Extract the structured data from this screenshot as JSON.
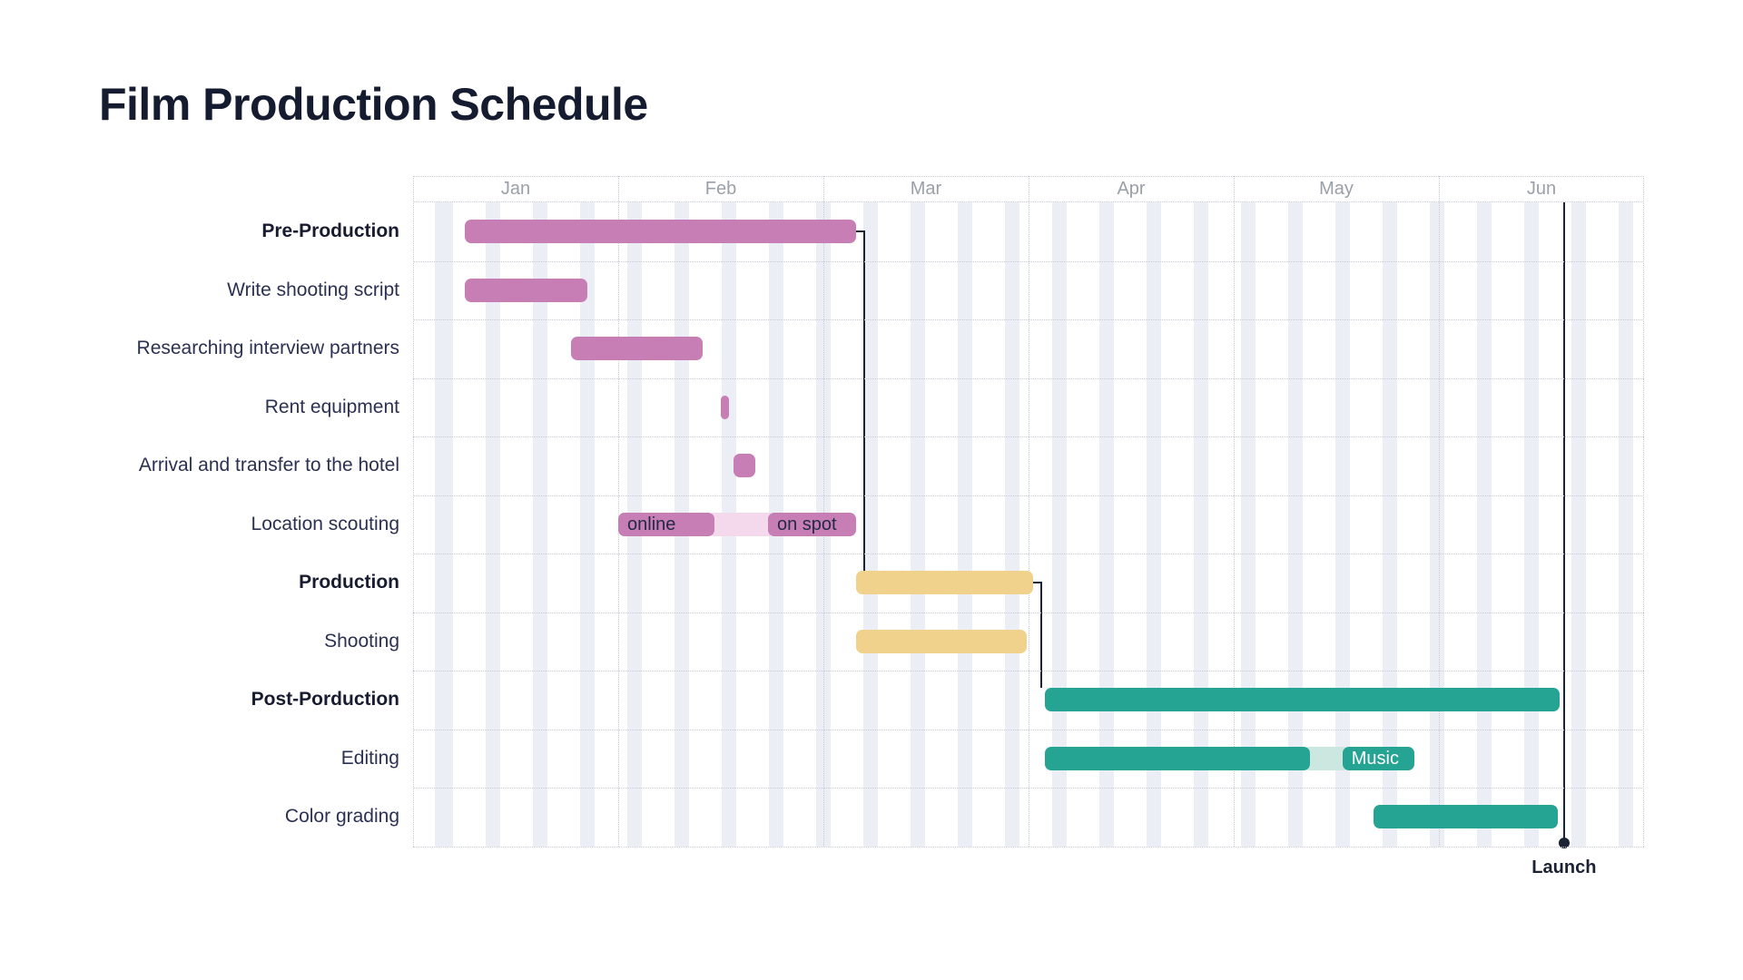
{
  "title": "Film Production Schedule",
  "colors": {
    "pink": "#c77eb5",
    "pink_light": "#f4d9ec",
    "yellow": "#f0d28c",
    "yellow_light": "#faf0d8",
    "teal": "#26a493",
    "teal_light": "#cbe7e0",
    "bar_label_dark": "#232947",
    "bar_label_light": "#ffffff",
    "line": "#1b2233",
    "stripe": "#ebeff5",
    "grid": "#c5cad3",
    "month_label": "#9aa0a8",
    "row_label": "#2b3152",
    "row_label_bold": "#171c30",
    "title_color": "#161c30"
  },
  "chart_data": {
    "type": "gantt",
    "title": "Film Production Schedule",
    "x_axis": {
      "unit": "month",
      "tick_labels": [
        "Jan",
        "Feb",
        "Mar",
        "Apr",
        "May",
        "Jun"
      ],
      "range_months": [
        0,
        6
      ]
    },
    "grid": {
      "weekend_stripes": true,
      "month_gridlines": "dotted",
      "row_gridlines": "dotted"
    },
    "tasks": [
      {
        "name": "Pre-Production",
        "bold": true,
        "color": "pink",
        "start": 0.25,
        "end": 2.16
      },
      {
        "name": "Write shooting script",
        "bold": false,
        "color": "pink",
        "start": 0.25,
        "end": 0.85
      },
      {
        "name": "Researching interview partners",
        "bold": false,
        "color": "pink",
        "start": 0.77,
        "end": 1.41
      },
      {
        "name": "Rent equipment",
        "bold": false,
        "color": "pink",
        "start": 1.5,
        "end": 1.54
      },
      {
        "name": "Arrival and transfer to the hotel",
        "bold": false,
        "color": "pink",
        "start": 1.56,
        "end": 1.67
      },
      {
        "name": "Location scouting",
        "bold": false,
        "color": "pink",
        "segments": [
          {
            "start": 1.0,
            "end": 1.47,
            "shade": "solid",
            "label": "online"
          },
          {
            "start": 1.47,
            "end": 1.73,
            "shade": "light",
            "label": ""
          },
          {
            "start": 1.73,
            "end": 2.16,
            "shade": "solid",
            "label": "on spot"
          }
        ]
      },
      {
        "name": "Production",
        "bold": true,
        "color": "yellow",
        "start": 2.16,
        "end": 3.02
      },
      {
        "name": "Shooting",
        "bold": false,
        "color": "yellow",
        "start": 2.16,
        "end": 2.99
      },
      {
        "name": "Post-Porduction",
        "bold": true,
        "color": "teal",
        "start": 3.08,
        "end": 5.59
      },
      {
        "name": "Editing",
        "bold": false,
        "color": "teal",
        "segments": [
          {
            "start": 3.08,
            "end": 4.37,
            "shade": "solid",
            "label": ""
          },
          {
            "start": 4.37,
            "end": 4.53,
            "shade": "light",
            "label": ""
          },
          {
            "start": 4.53,
            "end": 4.88,
            "shade": "solid",
            "label": "Music"
          }
        ]
      },
      {
        "name": "Color grading",
        "bold": false,
        "color": "teal",
        "start": 4.68,
        "end": 5.58
      }
    ],
    "dependencies": [
      {
        "from": "Pre-Production",
        "to": "Production"
      },
      {
        "from": "Production",
        "to": "Post-Porduction"
      }
    ],
    "milestone": {
      "name": "Launch",
      "month": 5.61
    }
  }
}
